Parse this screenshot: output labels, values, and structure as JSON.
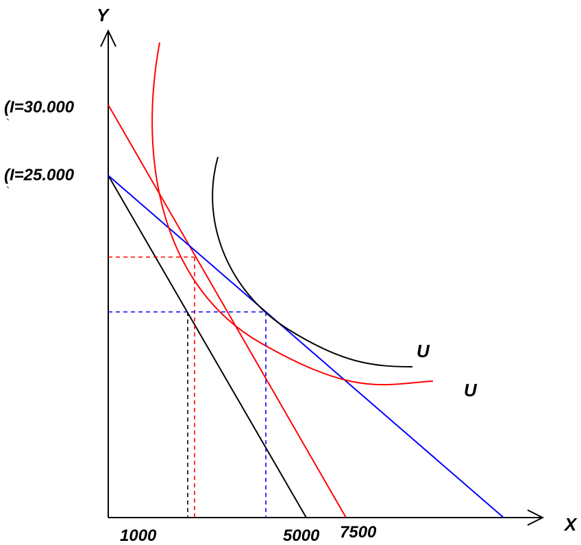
{
  "axes": {
    "y_label": "Y",
    "x_label": "X"
  },
  "income_labels": {
    "high": "(I=30.000",
    "low": "(I=25.000",
    "paren_tail": "`"
  },
  "x_ticks": {
    "first": "1000",
    "second": "5000",
    "third": "7500"
  },
  "curves": {
    "upper_label": "U",
    "lower_label": "U"
  },
  "colors": {
    "axis": "#000000",
    "budget_original": "#000000",
    "budget_new": "#ff0000",
    "budget_compensated": "#0000ff",
    "indifference_high": "#000000",
    "indifference_low": "#ff0000",
    "guide_red": "#ff0000",
    "guide_blue": "#0000ff",
    "guide_black": "#000000"
  }
}
